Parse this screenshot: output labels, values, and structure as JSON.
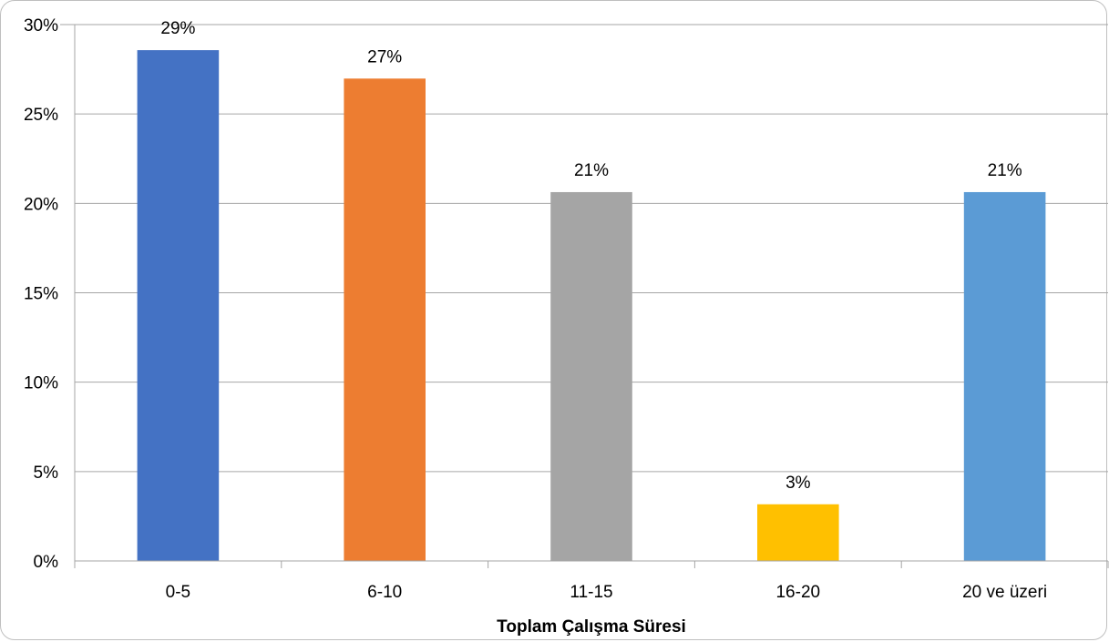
{
  "chart_data": {
    "type": "bar",
    "title": "",
    "xlabel": "Toplam Çalışma Süresi",
    "ylabel": "",
    "categories": [
      "0-5",
      "6-10",
      "11-15",
      "16-20",
      "20 ve üzeri"
    ],
    "values": [
      28.57,
      26.98,
      20.63,
      3.17,
      20.63
    ],
    "data_labels": [
      "29%",
      "27%",
      "21%",
      "3%",
      "21%"
    ],
    "colors": [
      "#4472c4",
      "#ed7d31",
      "#a5a5a5",
      "#ffc000",
      "#5b9bd5"
    ],
    "ylim": [
      0,
      30
    ],
    "yticks": [
      0,
      5,
      10,
      15,
      20,
      25,
      30
    ],
    "ytick_labels": [
      "0%",
      "5%",
      "10%",
      "15%",
      "20%",
      "25%",
      "30%"
    ],
    "grid": true,
    "legend": "none"
  }
}
